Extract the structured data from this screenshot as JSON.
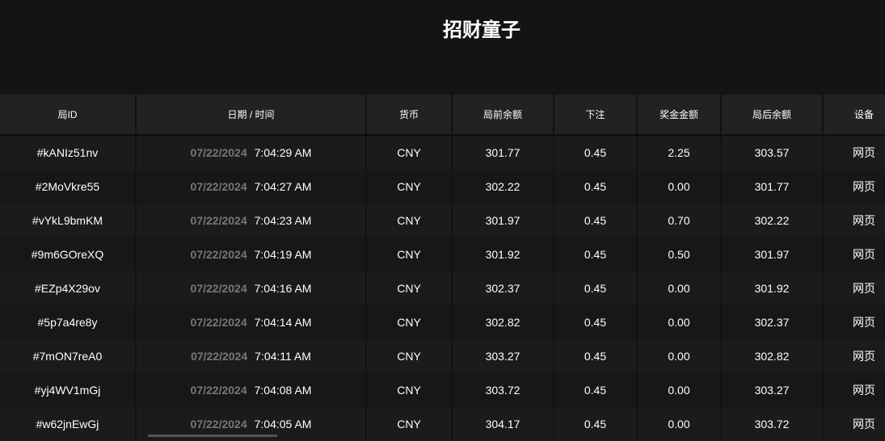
{
  "title": "招财童子",
  "columns": [
    "局ID",
    "日期 / 时间",
    "货币",
    "局前余额",
    "下注",
    "奖金金额",
    "局后余额",
    "设备"
  ],
  "rows": [
    {
      "id": "#kANIz51nv",
      "date": "07/22/2024",
      "time": "7:04:29 AM",
      "currency": "CNY",
      "before": "301.77",
      "bet": "0.45",
      "win": "2.25",
      "after": "303.57",
      "device": "网页"
    },
    {
      "id": "#2MoVkre55",
      "date": "07/22/2024",
      "time": "7:04:27 AM",
      "currency": "CNY",
      "before": "302.22",
      "bet": "0.45",
      "win": "0.00",
      "after": "301.77",
      "device": "网页"
    },
    {
      "id": "#vYkL9bmKM",
      "date": "07/22/2024",
      "time": "7:04:23 AM",
      "currency": "CNY",
      "before": "301.97",
      "bet": "0.45",
      "win": "0.70",
      "after": "302.22",
      "device": "网页"
    },
    {
      "id": "#9m6GOreXQ",
      "date": "07/22/2024",
      "time": "7:04:19 AM",
      "currency": "CNY",
      "before": "301.92",
      "bet": "0.45",
      "win": "0.50",
      "after": "301.97",
      "device": "网页"
    },
    {
      "id": "#EZp4X29ov",
      "date": "07/22/2024",
      "time": "7:04:16 AM",
      "currency": "CNY",
      "before": "302.37",
      "bet": "0.45",
      "win": "0.00",
      "after": "301.92",
      "device": "网页"
    },
    {
      "id": "#5p7a4re8y",
      "date": "07/22/2024",
      "time": "7:04:14 AM",
      "currency": "CNY",
      "before": "302.82",
      "bet": "0.45",
      "win": "0.00",
      "after": "302.37",
      "device": "网页"
    },
    {
      "id": "#7mON7reA0",
      "date": "07/22/2024",
      "time": "7:04:11 AM",
      "currency": "CNY",
      "before": "303.27",
      "bet": "0.45",
      "win": "0.00",
      "after": "302.82",
      "device": "网页"
    },
    {
      "id": "#yj4WV1mGj",
      "date": "07/22/2024",
      "time": "7:04:08 AM",
      "currency": "CNY",
      "before": "303.72",
      "bet": "0.45",
      "win": "0.00",
      "after": "303.27",
      "device": "网页"
    },
    {
      "id": "#w62jnEwGj",
      "date": "07/22/2024",
      "time": "7:04:05 AM",
      "currency": "CNY",
      "before": "304.17",
      "bet": "0.45",
      "win": "0.00",
      "after": "303.72",
      "device": "网页"
    }
  ]
}
